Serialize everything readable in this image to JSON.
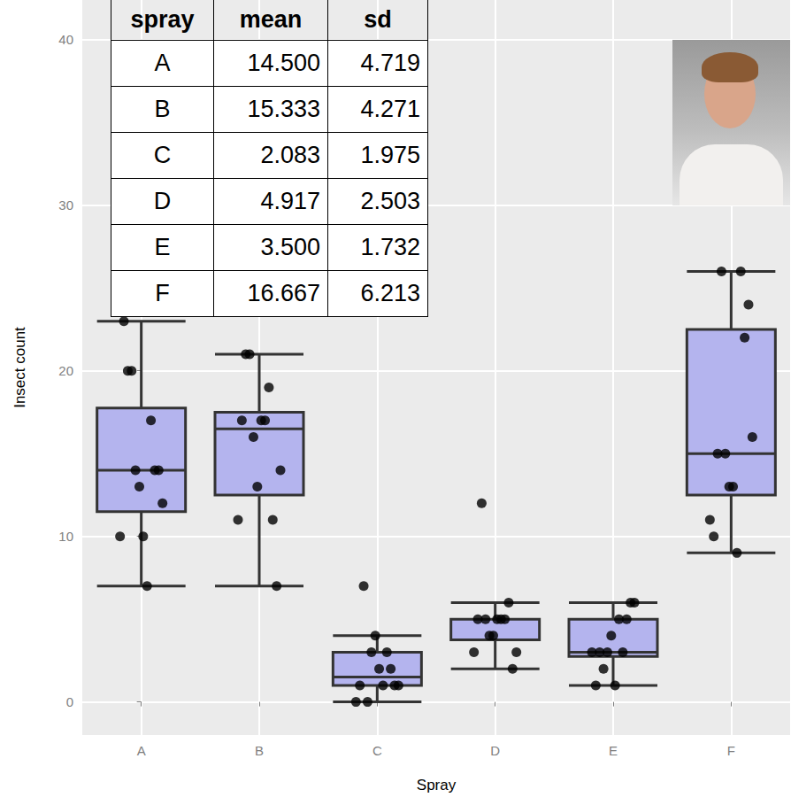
{
  "chart_data": {
    "type": "boxplot",
    "x_label": "Spray",
    "y_label": "Insect count",
    "categories": [
      "A",
      "B",
      "C",
      "D",
      "E",
      "F"
    ],
    "values": [
      [
        10,
        7,
        20,
        14,
        14,
        12,
        10,
        23,
        17,
        20,
        14,
        13
      ],
      [
        11,
        17,
        21,
        11,
        16,
        14,
        17,
        17,
        19,
        21,
        7,
        13
      ],
      [
        0,
        1,
        7,
        2,
        3,
        1,
        2,
        1,
        3,
        0,
        1,
        4
      ],
      [
        3,
        5,
        12,
        6,
        4,
        3,
        5,
        5,
        5,
        5,
        2,
        4
      ],
      [
        3,
        5,
        3,
        5,
        3,
        6,
        1,
        1,
        3,
        2,
        6,
        4
      ],
      [
        11,
        9,
        15,
        22,
        15,
        16,
        13,
        10,
        26,
        26,
        24,
        13
      ]
    ],
    "color": "#b4b4ee",
    "marker": "circle",
    "ylim": [
      -2,
      42.4
    ],
    "yticks": [
      0,
      10,
      20,
      30,
      40
    ],
    "grid": true,
    "table": {
      "columns": [
        "spray",
        "mean",
        "sd"
      ],
      "rows": [
        [
          "A",
          "14.500",
          "4.719"
        ],
        [
          "B",
          "15.333",
          "4.271"
        ],
        [
          "C",
          "2.083",
          "1.975"
        ],
        [
          "D",
          "4.917",
          "2.503"
        ],
        [
          "E",
          "3.500",
          "1.732"
        ],
        [
          "F",
          "16.667",
          "6.213"
        ]
      ]
    }
  }
}
